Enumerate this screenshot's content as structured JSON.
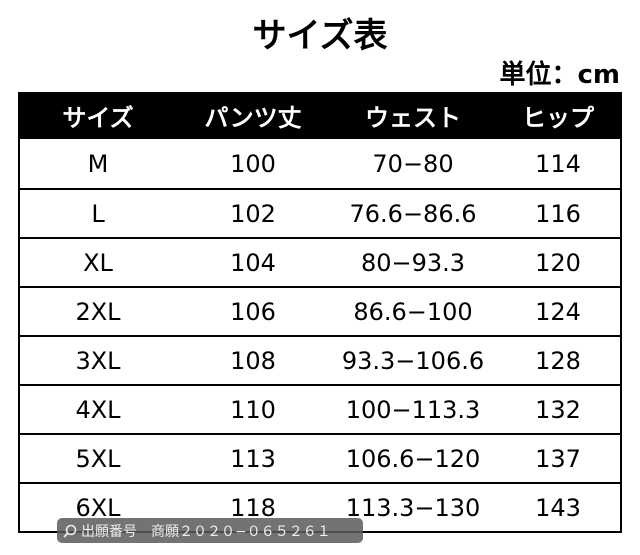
{
  "title": "サイズ表",
  "unit": "単位：cm",
  "table": {
    "headers": [
      "サイズ",
      "パンツ丈",
      "ウェスト",
      "ヒップ"
    ],
    "rows": [
      [
        "M",
        "100",
        "70−80",
        "114"
      ],
      [
        "L",
        "102",
        "76.6−86.6",
        "116"
      ],
      [
        "XL",
        "104",
        "80−93.3",
        "120"
      ],
      [
        "2XL",
        "106",
        "86.6−100",
        "124"
      ],
      [
        "3XL",
        "108",
        "93.3−106.6",
        "128"
      ],
      [
        "4XL",
        "110",
        "100−113.3",
        "132"
      ],
      [
        "5XL",
        "113",
        "106.6−120",
        "137"
      ],
      [
        "6XL",
        "118",
        "113.3−130",
        "143"
      ]
    ]
  },
  "watermark": {
    "icon": "search-icon",
    "text": "出願番号　商願２０２０−０６５２６１"
  }
}
